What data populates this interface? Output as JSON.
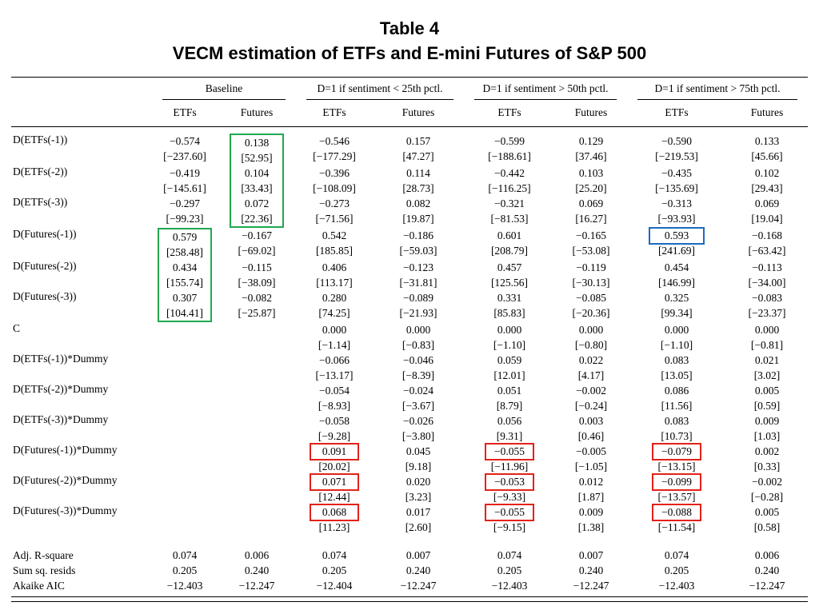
{
  "title": {
    "line1": "Table 4",
    "line2": "VECM estimation of ETFs and E-mini Futures of S&P 500"
  },
  "highlight_colors": {
    "green": "#1fa950",
    "blue": "#1c6bbf",
    "red": "#e32119"
  },
  "table": {
    "group_headers": [
      "Baseline",
      "D=1 if sentiment < 25th pctl.",
      "D=1 if sentiment > 50th pctl.",
      "D=1 if sentiment > 75th pctl."
    ],
    "sub_headers": [
      "ETFs",
      "Futures",
      "ETFs",
      "Futures",
      "ETFs",
      "Futures",
      "ETFs",
      "Futures"
    ],
    "rows": [
      {
        "label": "D(ETFs(-1))",
        "cells": [
          {
            "c": "−0.574",
            "t": "[−237.60]"
          },
          {
            "c": "0.138",
            "t": "[52.95]",
            "g": "top"
          },
          {
            "c": "−0.546",
            "t": "[−177.29]"
          },
          {
            "c": "0.157",
            "t": "[47.27]"
          },
          {
            "c": "−0.599",
            "t": "[−188.61]"
          },
          {
            "c": "0.129",
            "t": "[37.46]"
          },
          {
            "c": "−0.590",
            "t": "[−219.53]"
          },
          {
            "c": "0.133",
            "t": "[45.66]"
          }
        ]
      },
      {
        "label": "D(ETFs(-2))",
        "cells": [
          {
            "c": "−0.419",
            "t": "[−145.61]"
          },
          {
            "c": "0.104",
            "t": "[33.43]",
            "g": "mid"
          },
          {
            "c": "−0.396",
            "t": "[−108.09]"
          },
          {
            "c": "0.114",
            "t": "[28.73]"
          },
          {
            "c": "−0.442",
            "t": "[−116.25]"
          },
          {
            "c": "0.103",
            "t": "[25.20]"
          },
          {
            "c": "−0.435",
            "t": "[−135.69]"
          },
          {
            "c": "0.102",
            "t": "[29.43]"
          }
        ]
      },
      {
        "label": "D(ETFs(-3))",
        "cells": [
          {
            "c": "−0.297",
            "t": "[−99.23]"
          },
          {
            "c": "0.072",
            "t": "[22.36]",
            "g": "bot"
          },
          {
            "c": "−0.273",
            "t": "[−71.56]"
          },
          {
            "c": "0.082",
            "t": "[19.87]"
          },
          {
            "c": "−0.321",
            "t": "[−81.53]"
          },
          {
            "c": "0.069",
            "t": "[16.27]"
          },
          {
            "c": "−0.313",
            "t": "[−93.93]"
          },
          {
            "c": "0.069",
            "t": "[19.04]"
          }
        ]
      },
      {
        "label": "D(Futures(-1))",
        "cells": [
          {
            "c": "0.579",
            "t": "[258.48]",
            "g": "top"
          },
          {
            "c": "−0.167",
            "t": "[−69.02]"
          },
          {
            "c": "0.542",
            "t": "[185.85]"
          },
          {
            "c": "−0.186",
            "t": "[−59.03]"
          },
          {
            "c": "0.601",
            "t": "[208.79]"
          },
          {
            "c": "−0.165",
            "t": "[−53.08]"
          },
          {
            "c": "0.593",
            "t": "[241.69]",
            "hl": "blue"
          },
          {
            "c": "−0.168",
            "t": "[−63.42]"
          }
        ]
      },
      {
        "label": "D(Futures(-2))",
        "cells": [
          {
            "c": "0.434",
            "t": "[155.74]",
            "g": "mid"
          },
          {
            "c": "−0.115",
            "t": "[−38.09]"
          },
          {
            "c": "0.406",
            "t": "[113.17]"
          },
          {
            "c": "−0.123",
            "t": "[−31.81]"
          },
          {
            "c": "0.457",
            "t": "[125.56]"
          },
          {
            "c": "−0.119",
            "t": "[−30.13]"
          },
          {
            "c": "0.454",
            "t": "[146.99]"
          },
          {
            "c": "−0.113",
            "t": "[−34.00]"
          }
        ]
      },
      {
        "label": "D(Futures(-3))",
        "cells": [
          {
            "c": "0.307",
            "t": "[104.41]",
            "g": "bot"
          },
          {
            "c": "−0.082",
            "t": "[−25.87]"
          },
          {
            "c": "0.280",
            "t": "[74.25]"
          },
          {
            "c": "−0.089",
            "t": "[−21.93]"
          },
          {
            "c": "0.331",
            "t": "[85.83]"
          },
          {
            "c": "−0.085",
            "t": "[−20.36]"
          },
          {
            "c": "0.325",
            "t": "[99.34]"
          },
          {
            "c": "−0.083",
            "t": "[−23.37]"
          }
        ]
      },
      {
        "label": "C",
        "cells": [
          null,
          null,
          {
            "c": "0.000",
            "t": "[−1.14]"
          },
          {
            "c": "0.000",
            "t": "[−0.83]"
          },
          {
            "c": "0.000",
            "t": "[−1.10]"
          },
          {
            "c": "0.000",
            "t": "[−0.80]"
          },
          {
            "c": "0.000",
            "t": "[−1.10]"
          },
          {
            "c": "0.000",
            "t": "[−0.81]"
          }
        ]
      },
      {
        "label": "D(ETFs(-1))*Dummy",
        "cells": [
          null,
          null,
          {
            "c": "−0.066",
            "t": "[−13.17]"
          },
          {
            "c": "−0.046",
            "t": "[−8.39]"
          },
          {
            "c": "0.059",
            "t": "[12.01]"
          },
          {
            "c": "0.022",
            "t": "[4.17]"
          },
          {
            "c": "0.083",
            "t": "[13.05]"
          },
          {
            "c": "0.021",
            "t": "[3.02]"
          }
        ]
      },
      {
        "label": "D(ETFs(-2))*Dummy",
        "cells": [
          null,
          null,
          {
            "c": "−0.054",
            "t": "[−8.93]"
          },
          {
            "c": "−0.024",
            "t": "[−3.67]"
          },
          {
            "c": "0.051",
            "t": "[8.79]"
          },
          {
            "c": "−0.002",
            "t": "[−0.24]"
          },
          {
            "c": "0.086",
            "t": "[11.56]"
          },
          {
            "c": "0.005",
            "t": "[0.59]"
          }
        ]
      },
      {
        "label": "D(ETFs(-3))*Dummy",
        "cells": [
          null,
          null,
          {
            "c": "−0.058",
            "t": "[−9.28]"
          },
          {
            "c": "−0.026",
            "t": "[−3.80]"
          },
          {
            "c": "0.056",
            "t": "[9.31]"
          },
          {
            "c": "0.003",
            "t": "[0.46]"
          },
          {
            "c": "0.083",
            "t": "[10.73]"
          },
          {
            "c": "0.009",
            "t": "[1.03]"
          }
        ]
      },
      {
        "label": "D(Futures(-1))*Dummy",
        "cells": [
          null,
          null,
          {
            "c": "0.091",
            "t": "[20.02]",
            "hl": "red"
          },
          {
            "c": "0.045",
            "t": "[9.18]"
          },
          {
            "c": "−0.055",
            "t": "[−11.96]",
            "hl": "red"
          },
          {
            "c": "−0.005",
            "t": "[−1.05]"
          },
          {
            "c": "−0.079",
            "t": "[−13.15]",
            "hl": "red"
          },
          {
            "c": "0.002",
            "t": "[0.33]"
          }
        ]
      },
      {
        "label": "D(Futures(-2))*Dummy",
        "cells": [
          null,
          null,
          {
            "c": "0.071",
            "t": "[12.44]",
            "hl": "red"
          },
          {
            "c": "0.020",
            "t": "[3.23]"
          },
          {
            "c": "−0.053",
            "t": "[−9.33]",
            "hl": "red"
          },
          {
            "c": "0.012",
            "t": "[1.87]"
          },
          {
            "c": "−0.099",
            "t": "[−13.57]",
            "hl": "red"
          },
          {
            "c": "−0.002",
            "t": "[−0.28]"
          }
        ]
      },
      {
        "label": "D(Futures(-3))*Dummy",
        "cells": [
          null,
          null,
          {
            "c": "0.068",
            "t": "[11.23]",
            "hl": "red"
          },
          {
            "c": "0.017",
            "t": "[2.60]"
          },
          {
            "c": "−0.055",
            "t": "[−9.15]",
            "hl": "red"
          },
          {
            "c": "0.009",
            "t": "[1.38]"
          },
          {
            "c": "−0.088",
            "t": "[−11.54]",
            "hl": "red"
          },
          {
            "c": "0.005",
            "t": "[0.58]"
          }
        ]
      }
    ],
    "stats_rows": [
      {
        "label": "Adj. R-square",
        "values": [
          "0.074",
          "0.006",
          "0.074",
          "0.007",
          "0.074",
          "0.007",
          "0.074",
          "0.006"
        ]
      },
      {
        "label": "Sum sq. resids",
        "values": [
          "0.205",
          "0.240",
          "0.205",
          "0.240",
          "0.205",
          "0.240",
          "0.205",
          "0.240"
        ]
      },
      {
        "label": "Akaike AIC",
        "values": [
          "−12.403",
          "−12.247",
          "−12.404",
          "−12.247",
          "−12.403",
          "−12.247",
          "−12.403",
          "−12.247"
        ]
      }
    ]
  }
}
